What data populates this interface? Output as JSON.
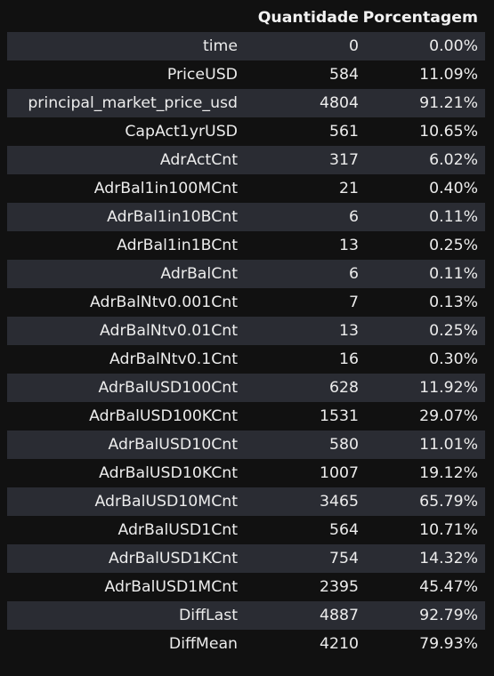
{
  "table": {
    "headers": [
      "",
      "Quantidade",
      "Porcentagem"
    ],
    "rows": [
      {
        "name": "time",
        "count": "0",
        "pct": "0.00%"
      },
      {
        "name": "PriceUSD",
        "count": "584",
        "pct": "11.09%"
      },
      {
        "name": "principal_market_price_usd",
        "count": "4804",
        "pct": "91.21%"
      },
      {
        "name": "CapAct1yrUSD",
        "count": "561",
        "pct": "10.65%"
      },
      {
        "name": "AdrActCnt",
        "count": "317",
        "pct": "6.02%"
      },
      {
        "name": "AdrBal1in100MCnt",
        "count": "21",
        "pct": "0.40%"
      },
      {
        "name": "AdrBal1in10BCnt",
        "count": "6",
        "pct": "0.11%"
      },
      {
        "name": "AdrBal1in1BCnt",
        "count": "13",
        "pct": "0.25%"
      },
      {
        "name": "AdrBalCnt",
        "count": "6",
        "pct": "0.11%"
      },
      {
        "name": "AdrBalNtv0.001Cnt",
        "count": "7",
        "pct": "0.13%"
      },
      {
        "name": "AdrBalNtv0.01Cnt",
        "count": "13",
        "pct": "0.25%"
      },
      {
        "name": "AdrBalNtv0.1Cnt",
        "count": "16",
        "pct": "0.30%"
      },
      {
        "name": "AdrBalUSD100Cnt",
        "count": "628",
        "pct": "11.92%"
      },
      {
        "name": "AdrBalUSD100KCnt",
        "count": "1531",
        "pct": "29.07%"
      },
      {
        "name": "AdrBalUSD10Cnt",
        "count": "580",
        "pct": "11.01%"
      },
      {
        "name": "AdrBalUSD10KCnt",
        "count": "1007",
        "pct": "19.12%"
      },
      {
        "name": "AdrBalUSD10MCnt",
        "count": "3465",
        "pct": "65.79%"
      },
      {
        "name": "AdrBalUSD1Cnt",
        "count": "564",
        "pct": "10.71%"
      },
      {
        "name": "AdrBalUSD1KCnt",
        "count": "754",
        "pct": "14.32%"
      },
      {
        "name": "AdrBalUSD1MCnt",
        "count": "2395",
        "pct": "45.47%"
      },
      {
        "name": "DiffLast",
        "count": "4887",
        "pct": "92.79%"
      },
      {
        "name": "DiffMean",
        "count": "4210",
        "pct": "79.93%"
      }
    ]
  },
  "colors": {
    "background": "#111111",
    "stripe": "#2a2c33",
    "text": "#ececec"
  }
}
